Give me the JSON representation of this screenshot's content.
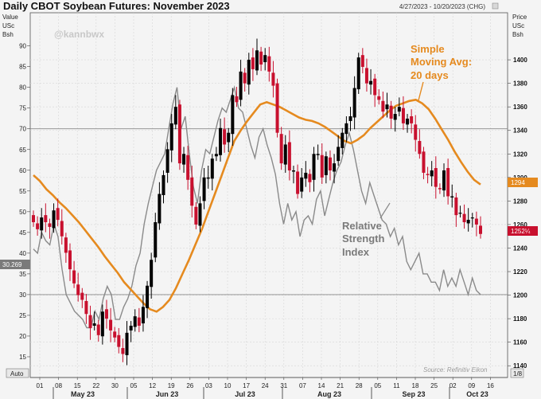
{
  "title": "Daily CBOT Soybean Futures: November 2023",
  "date_range": "4/27/2023 - 10/20/2023 (CHG)",
  "handle": "@kannbwx",
  "source": "Source: Refinitiv Eikon",
  "left_units": [
    "Value",
    "USc",
    "Bsh"
  ],
  "right_units": [
    "Price",
    "USc",
    "Bsh"
  ],
  "auto_label": "Auto",
  "ratio_label": "1/8",
  "annotations": {
    "sma": [
      "Simple",
      "Moving Avg:",
      "20 days"
    ],
    "rsi": [
      "Relative",
      "Strength",
      "Index"
    ]
  },
  "badges": {
    "sma_value": "1294",
    "last_price": "1252¼",
    "rsi_value": "30.269"
  },
  "colors": {
    "up_candle": "#000000",
    "down_candle": "#c8102e",
    "sma": "#e58a1f",
    "rsi": "#8a8a8a",
    "sma_badge": "#e58a1f",
    "price_badge": "#c8102e",
    "rsi_badge": "#7a7a7a"
  },
  "chart_data": {
    "type": "candlestick",
    "title": "Daily CBOT Soybean Futures: November 2023",
    "price_axis": {
      "label": "Price USc Bsh",
      "range": [
        1130,
        1440
      ],
      "ticks": [
        1140,
        1160,
        1180,
        1200,
        1220,
        1240,
        1260,
        1280,
        1300,
        1320,
        1340,
        1360,
        1380,
        1400
      ]
    },
    "rsi_axis": {
      "label": "Value USc Bsh",
      "range": [
        10,
        98
      ],
      "ticks": [
        15,
        20,
        25,
        30,
        35,
        40,
        45,
        50,
        55,
        60,
        65,
        70,
        75,
        80,
        85,
        90
      ]
    },
    "x_tick_labels": [
      "01",
      "08",
      "15",
      "22",
      "30",
      "05",
      "12",
      "19",
      "26",
      "03",
      "10",
      "17",
      "24",
      "31",
      "07",
      "14",
      "21",
      "28",
      "05",
      "11",
      "18",
      "25",
      "02",
      "09",
      "16"
    ],
    "months": [
      "May 23",
      "Jun 23",
      "Jul 23",
      "Aug 23",
      "Sep 23",
      "Oct 23"
    ],
    "reference_lines": {
      "rsi": [
        70,
        30
      ]
    },
    "closes": [
      1262,
      1256,
      1266,
      1262,
      1258,
      1272,
      1264,
      1250,
      1236,
      1222,
      1210,
      1200,
      1196,
      1184,
      1172,
      1176,
      1166,
      1186,
      1180,
      1170,
      1164,
      1156,
      1150,
      1168,
      1174,
      1182,
      1174,
      1190,
      1208,
      1230,
      1262,
      1286,
      1302,
      1324,
      1346,
      1360,
      1312,
      1320,
      1298,
      1276,
      1260,
      1278,
      1300,
      1300,
      1316,
      1320,
      1342,
      1328,
      1338,
      1370,
      1364,
      1390,
      1380,
      1400,
      1392,
      1408,
      1396,
      1404,
      1390,
      1378,
      1338,
      1312,
      1328,
      1306,
      1306,
      1286,
      1300,
      1304,
      1296,
      1320,
      1320,
      1300,
      1318,
      1306,
      1312,
      1326,
      1338,
      1346,
      1352,
      1376,
      1402,
      1394,
      1380,
      1382,
      1370,
      1366,
      1356,
      1362,
      1350,
      1354,
      1360,
      1346,
      1350,
      1346,
      1332,
      1320,
      1304,
      1302,
      1306,
      1292,
      1290,
      1306,
      1284,
      1284,
      1268,
      1270,
      1262,
      1264,
      1266,
      1260,
      1252
    ],
    "sma_20": [
      1302,
      1297,
      1290,
      1285,
      1279,
      1274,
      1268,
      1262,
      1255,
      1248,
      1241,
      1233,
      1226,
      1219,
      1211,
      1205,
      1199,
      1193,
      1188,
      1186,
      1190,
      1196,
      1206,
      1218,
      1230,
      1243,
      1256,
      1271,
      1286,
      1301,
      1316,
      1331,
      1340,
      1348,
      1355,
      1362,
      1364,
      1362,
      1360,
      1357,
      1354,
      1351,
      1349,
      1348,
      1346,
      1343,
      1339,
      1335,
      1331,
      1329,
      1332,
      1336,
      1342,
      1347,
      1352,
      1357,
      1361,
      1363,
      1365,
      1366,
      1363,
      1358,
      1350,
      1341,
      1332,
      1322,
      1313,
      1305,
      1298,
      1294
    ],
    "rsi": [
      41,
      40,
      45,
      43,
      42,
      47,
      44,
      36,
      30,
      28,
      26,
      25,
      24,
      22,
      22,
      26,
      24,
      29,
      32,
      30,
      24,
      24,
      27,
      29,
      32,
      37,
      40,
      47,
      52,
      56,
      60,
      62,
      64,
      70,
      76,
      80,
      70,
      73,
      64,
      56,
      52,
      60,
      65,
      64,
      68,
      72,
      75,
      74,
      77,
      80,
      75,
      74,
      70,
      66,
      63,
      68,
      70,
      66,
      63,
      59,
      52,
      47,
      52,
      48,
      50,
      44,
      48,
      49,
      47,
      53,
      55,
      49,
      53,
      57,
      60,
      62,
      66,
      69,
      65,
      60,
      55,
      52,
      57,
      54,
      51,
      48,
      47,
      44,
      46,
      42,
      44,
      38,
      36,
      38,
      40,
      35,
      35,
      33,
      33,
      31,
      36,
      32,
      34,
      32,
      36,
      33,
      30,
      34,
      31,
      30
    ]
  }
}
